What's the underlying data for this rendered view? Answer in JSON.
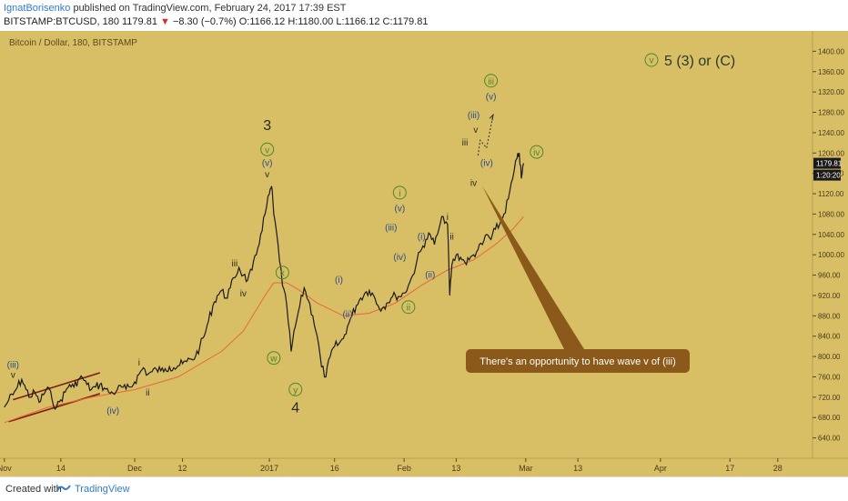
{
  "header": {
    "author": "IgnatBorisenko",
    "published_text": " published on TradingView.com, February 24, 2017 17:39 EST",
    "symbol_line": "BITSTAMP:BTCUSD, 180  1179.81",
    "change_arrow": "▼",
    "change": " −8.30 (−0.7%)",
    "ohlc": "  O:1166.12  H:1180.00  L:1166.12  C:1179.81"
  },
  "footer": {
    "created_with": "Created with",
    "brand": "TradingView"
  },
  "colors": {
    "background": "#d8bf66",
    "candle": "#1a1a1a",
    "moving_average": "#e8663a",
    "channel": "#7a1f10",
    "wave_green": "#4a8a2a",
    "wave_blue": "#2a4a8a",
    "callout": "#8b5a1a",
    "price_badge": "#1a1a1a"
  },
  "chart_data": {
    "type": "line",
    "title": "Bitcoin / Dollar, 180, BITSTAMP",
    "subtitle": "v 5 (3) or (C)",
    "ylim": [
      600,
      1440
    ],
    "y_ticks": [
      640,
      680,
      720,
      760,
      800,
      840,
      880,
      920,
      960,
      1000,
      1040,
      1080,
      1120,
      1160,
      1200,
      1240,
      1280,
      1320,
      1360,
      1400
    ],
    "x_ticks": [
      {
        "label": "Nov",
        "day": 0
      },
      {
        "label": "14",
        "day": 13
      },
      {
        "label": "Dec",
        "day": 30
      },
      {
        "label": "12",
        "day": 41
      },
      {
        "label": "2017",
        "day": 61
      },
      {
        "label": "16",
        "day": 76
      },
      {
        "label": "Feb",
        "day": 92
      },
      {
        "label": "13",
        "day": 104
      },
      {
        "label": "Mar",
        "day": 120
      },
      {
        "label": "13",
        "day": 132
      },
      {
        "label": "Apr",
        "day": 151
      },
      {
        "label": "17",
        "day": 167
      },
      {
        "label": "28",
        "day": 178
      }
    ],
    "x_range": [
      -1,
      186
    ],
    "last_price": "1179.81",
    "last_time": "1:20:20",
    "price_series": [
      {
        "day": 0,
        "price": 700
      },
      {
        "day": 1,
        "price": 715
      },
      {
        "day": 2,
        "price": 725
      },
      {
        "day": 3,
        "price": 740
      },
      {
        "day": 4,
        "price": 755
      },
      {
        "day": 5,
        "price": 735
      },
      {
        "day": 6,
        "price": 720
      },
      {
        "day": 7,
        "price": 730
      },
      {
        "day": 8,
        "price": 710
      },
      {
        "day": 9,
        "price": 725
      },
      {
        "day": 10,
        "price": 740
      },
      {
        "day": 11,
        "price": 715
      },
      {
        "day": 12,
        "price": 700
      },
      {
        "day": 13,
        "price": 715
      },
      {
        "day": 14,
        "price": 730
      },
      {
        "day": 15,
        "price": 745
      },
      {
        "day": 16,
        "price": 740
      },
      {
        "day": 17,
        "price": 755
      },
      {
        "day": 18,
        "price": 758
      },
      {
        "day": 19,
        "price": 745
      },
      {
        "day": 20,
        "price": 735
      },
      {
        "day": 21,
        "price": 740
      },
      {
        "day": 22,
        "price": 745
      },
      {
        "day": 23,
        "price": 738
      },
      {
        "day": 24,
        "price": 730
      },
      {
        "day": 25,
        "price": 728
      },
      {
        "day": 26,
        "price": 735
      },
      {
        "day": 27,
        "price": 740
      },
      {
        "day": 28,
        "price": 736
      },
      {
        "day": 29,
        "price": 740
      },
      {
        "day": 30,
        "price": 750
      },
      {
        "day": 31,
        "price": 765
      },
      {
        "day": 32,
        "price": 778
      },
      {
        "day": 33,
        "price": 765
      },
      {
        "day": 34,
        "price": 770
      },
      {
        "day": 35,
        "price": 775
      },
      {
        "day": 36,
        "price": 772
      },
      {
        "day": 37,
        "price": 776
      },
      {
        "day": 38,
        "price": 780
      },
      {
        "day": 39,
        "price": 778
      },
      {
        "day": 40,
        "price": 782
      },
      {
        "day": 41,
        "price": 786
      },
      {
        "day": 42,
        "price": 790
      },
      {
        "day": 43,
        "price": 795
      },
      {
        "day": 44,
        "price": 800
      },
      {
        "day": 45,
        "price": 820
      },
      {
        "day": 46,
        "price": 840
      },
      {
        "day": 47,
        "price": 870
      },
      {
        "day": 48,
        "price": 900
      },
      {
        "day": 49,
        "price": 920
      },
      {
        "day": 50,
        "price": 930
      },
      {
        "day": 51,
        "price": 915
      },
      {
        "day": 52,
        "price": 935
      },
      {
        "day": 53,
        "price": 955
      },
      {
        "day": 54,
        "price": 975
      },
      {
        "day": 55,
        "price": 960
      },
      {
        "day": 56,
        "price": 950
      },
      {
        "day": 57,
        "price": 970
      },
      {
        "day": 58,
        "price": 1000
      },
      {
        "day": 59,
        "price": 1040
      },
      {
        "day": 60,
        "price": 1080
      },
      {
        "day": 61,
        "price": 1120
      },
      {
        "day": 61.5,
        "price": 1135
      },
      {
        "day": 62,
        "price": 1080
      },
      {
        "day": 63,
        "price": 1020
      },
      {
        "day": 64,
        "price": 940
      },
      {
        "day": 65,
        "price": 900
      },
      {
        "day": 66,
        "price": 810
      },
      {
        "day": 67,
        "price": 860
      },
      {
        "day": 68,
        "price": 900
      },
      {
        "day": 69,
        "price": 935
      },
      {
        "day": 70,
        "price": 910
      },
      {
        "day": 71,
        "price": 880
      },
      {
        "day": 72,
        "price": 840
      },
      {
        "day": 73,
        "price": 780
      },
      {
        "day": 74,
        "price": 760
      },
      {
        "day": 75,
        "price": 800
      },
      {
        "day": 76,
        "price": 820
      },
      {
        "day": 77,
        "price": 825
      },
      {
        "day": 78,
        "price": 835
      },
      {
        "day": 79,
        "price": 860
      },
      {
        "day": 80,
        "price": 880
      },
      {
        "day": 81,
        "price": 900
      },
      {
        "day": 82,
        "price": 915
      },
      {
        "day": 83,
        "price": 925
      },
      {
        "day": 84,
        "price": 930
      },
      {
        "day": 85,
        "price": 920
      },
      {
        "day": 86,
        "price": 900
      },
      {
        "day": 87,
        "price": 895
      },
      {
        "day": 88,
        "price": 905
      },
      {
        "day": 89,
        "price": 915
      },
      {
        "day": 90,
        "price": 920
      },
      {
        "day": 91,
        "price": 918
      },
      {
        "day": 92,
        "price": 925
      },
      {
        "day": 93,
        "price": 940
      },
      {
        "day": 94,
        "price": 960
      },
      {
        "day": 95,
        "price": 990
      },
      {
        "day": 96,
        "price": 1010
      },
      {
        "day": 97,
        "price": 1030
      },
      {
        "day": 98,
        "price": 1040
      },
      {
        "day": 99,
        "price": 1020
      },
      {
        "day": 100,
        "price": 1050
      },
      {
        "day": 101,
        "price": 1075
      },
      {
        "day": 102,
        "price": 1060
      },
      {
        "day": 102.5,
        "price": 920
      },
      {
        "day": 103,
        "price": 980
      },
      {
        "day": 104,
        "price": 1000
      },
      {
        "day": 105,
        "price": 995
      },
      {
        "day": 106,
        "price": 985
      },
      {
        "day": 107,
        "price": 990
      },
      {
        "day": 108,
        "price": 1000
      },
      {
        "day": 109,
        "price": 1010
      },
      {
        "day": 110,
        "price": 1020
      },
      {
        "day": 111,
        "price": 1040
      },
      {
        "day": 112,
        "price": 1030
      },
      {
        "day": 113,
        "price": 1050
      },
      {
        "day": 114,
        "price": 1060
      },
      {
        "day": 115,
        "price": 1080
      },
      {
        "day": 116,
        "price": 1110
      },
      {
        "day": 117,
        "price": 1150
      },
      {
        "day": 118,
        "price": 1190
      },
      {
        "day": 118.5,
        "price": 1200
      },
      {
        "day": 119,
        "price": 1150
      },
      {
        "day": 119.5,
        "price": 1180
      }
    ],
    "moving_average": [
      {
        "day": 0,
        "price": 670
      },
      {
        "day": 10,
        "price": 700
      },
      {
        "day": 20,
        "price": 720
      },
      {
        "day": 30,
        "price": 735
      },
      {
        "day": 40,
        "price": 760
      },
      {
        "day": 50,
        "price": 810
      },
      {
        "day": 55,
        "price": 850
      },
      {
        "day": 60,
        "price": 920
      },
      {
        "day": 62,
        "price": 945
      },
      {
        "day": 65,
        "price": 945
      },
      {
        "day": 68,
        "price": 930
      },
      {
        "day": 72,
        "price": 905
      },
      {
        "day": 78,
        "price": 880
      },
      {
        "day": 84,
        "price": 885
      },
      {
        "day": 90,
        "price": 905
      },
      {
        "day": 96,
        "price": 940
      },
      {
        "day": 102,
        "price": 970
      },
      {
        "day": 108,
        "price": 990
      },
      {
        "day": 113,
        "price": 1020
      },
      {
        "day": 117,
        "price": 1050
      },
      {
        "day": 119.5,
        "price": 1075
      }
    ],
    "channel_lines": [
      {
        "from": {
          "day": 2,
          "price": 715
        },
        "to": {
          "day": 22,
          "price": 768
        }
      },
      {
        "from": {
          "day": 1,
          "price": 672
        },
        "to": {
          "day": 22,
          "price": 727
        }
      }
    ],
    "annotations": [
      {
        "text": "(iii)",
        "day": 2,
        "price": 778,
        "color": "blue",
        "circle": false
      },
      {
        "text": "v",
        "day": 2,
        "price": 758,
        "color": "dark",
        "circle": false
      },
      {
        "text": "i",
        "day": 31,
        "price": 782,
        "color": "dark",
        "circle": false
      },
      {
        "text": "ii",
        "day": 33,
        "price": 723,
        "color": "dark",
        "circle": false
      },
      {
        "text": "(iv)",
        "day": 25,
        "price": 688,
        "color": "blue",
        "circle": false
      },
      {
        "text": "iii",
        "day": 53,
        "price": 977,
        "color": "dark",
        "circle": false
      },
      {
        "text": "iv",
        "day": 55,
        "price": 918,
        "color": "dark",
        "circle": false
      },
      {
        "text": "3",
        "day": 60.5,
        "price": 1245,
        "color": "dark",
        "circle": false,
        "large": true
      },
      {
        "text": "v",
        "day": 60.5,
        "price": 1200,
        "color": "green",
        "circle": true
      },
      {
        "text": "(v)",
        "day": 60.5,
        "price": 1175,
        "color": "blue",
        "circle": false
      },
      {
        "text": "v",
        "day": 60.5,
        "price": 1152,
        "color": "dark",
        "circle": false
      },
      {
        "text": "x",
        "day": 64,
        "price": 958,
        "color": "green",
        "circle": true
      },
      {
        "text": "w",
        "day": 62,
        "price": 790,
        "color": "green",
        "circle": true
      },
      {
        "text": "y",
        "day": 67,
        "price": 728,
        "color": "green",
        "circle": true
      },
      {
        "text": "4",
        "day": 67,
        "price": 690,
        "color": "dark",
        "circle": false,
        "large": true
      },
      {
        "text": "(i)",
        "day": 77,
        "price": 945,
        "color": "blue",
        "circle": false
      },
      {
        "text": "(ii)",
        "day": 79,
        "price": 877,
        "color": "blue",
        "circle": false
      },
      {
        "text": "(iii)",
        "day": 89,
        "price": 1048,
        "color": "blue",
        "circle": false
      },
      {
        "text": "i",
        "day": 91,
        "price": 1115,
        "color": "green",
        "circle": true
      },
      {
        "text": "(v)",
        "day": 91,
        "price": 1085,
        "color": "blue",
        "circle": false
      },
      {
        "text": "(iv)",
        "day": 91,
        "price": 990,
        "color": "blue",
        "circle": false
      },
      {
        "text": "ii",
        "day": 93,
        "price": 890,
        "color": "green",
        "circle": true
      },
      {
        "text": "(i)",
        "day": 96,
        "price": 1030,
        "color": "blue",
        "circle": false
      },
      {
        "text": "(ii)",
        "day": 98,
        "price": 955,
        "color": "blue",
        "circle": false
      },
      {
        "text": "i",
        "day": 102,
        "price": 1068,
        "color": "dark",
        "circle": false
      },
      {
        "text": "ii",
        "day": 103,
        "price": 1030,
        "color": "dark",
        "circle": false
      },
      {
        "text": "iii",
        "day": 106,
        "price": 1215,
        "color": "dark",
        "circle": false
      },
      {
        "text": "iv",
        "day": 108,
        "price": 1135,
        "color": "dark",
        "circle": false
      },
      {
        "text": "(iii)",
        "day": 108,
        "price": 1268,
        "color": "blue",
        "circle": false
      },
      {
        "text": "v",
        "day": 108.5,
        "price": 1240,
        "color": "dark",
        "circle": false
      },
      {
        "text": "(iv)",
        "day": 111,
        "price": 1175,
        "color": "blue",
        "circle": false
      },
      {
        "text": "iii",
        "day": 112,
        "price": 1335,
        "color": "green",
        "circle": true
      },
      {
        "text": "(v)",
        "day": 112,
        "price": 1305,
        "color": "blue",
        "circle": false
      },
      {
        "text": "iv",
        "day": 122.5,
        "price": 1195,
        "color": "green",
        "circle": true
      }
    ],
    "dotted_projection": [
      {
        "day": 109,
        "price": 1195
      },
      {
        "day": 109.5,
        "price": 1225
      },
      {
        "day": 111,
        "price": 1210
      },
      {
        "day": 112.5,
        "price": 1275
      }
    ],
    "callout": {
      "text": "There's an opportunity to have wave v of (iii)",
      "anchor": {
        "day": 110,
        "price": 1135
      }
    }
  }
}
